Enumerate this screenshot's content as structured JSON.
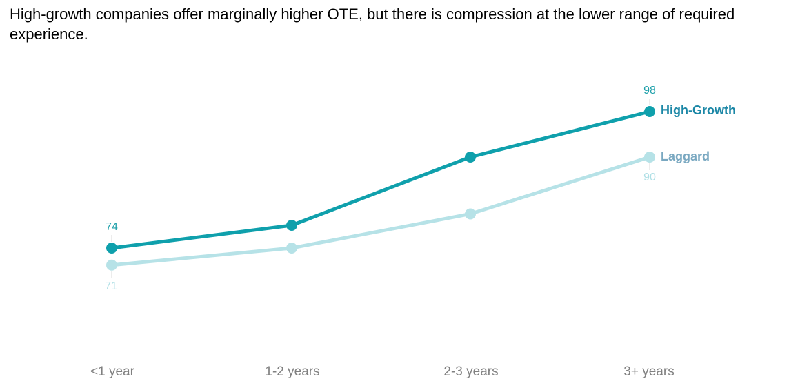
{
  "chart_data": {
    "type": "line",
    "title": "High-growth companies offer marginally higher OTE, but there is compression at the lower range of required experience.",
    "categories": [
      "<1 year",
      "1-2 years",
      "2-3 years",
      "3+ years"
    ],
    "xlabel": "",
    "ylabel": "",
    "y_axis_shown": false,
    "grid": false,
    "legend_position": "line-end-labels",
    "value_labels_shown": "first and last points only",
    "series": [
      {
        "name": "High-Growth",
        "values": [
          74,
          78,
          90,
          98
        ],
        "color": "#0fa0ac",
        "name_label_color": "#1b87a6",
        "value_label_color": "#1fa0aa",
        "value_label_position": "above"
      },
      {
        "name": "Laggard",
        "values": [
          71,
          74,
          80,
          90
        ],
        "color": "#b6e2e7",
        "name_label_color": "#79a8c1",
        "value_label_color": "#aedfe5",
        "value_label_position": "below"
      }
    ]
  },
  "text_colors": {
    "title": "#000000",
    "x_axis_labels": "#808080",
    "leader_line": "#d9d9d9"
  }
}
